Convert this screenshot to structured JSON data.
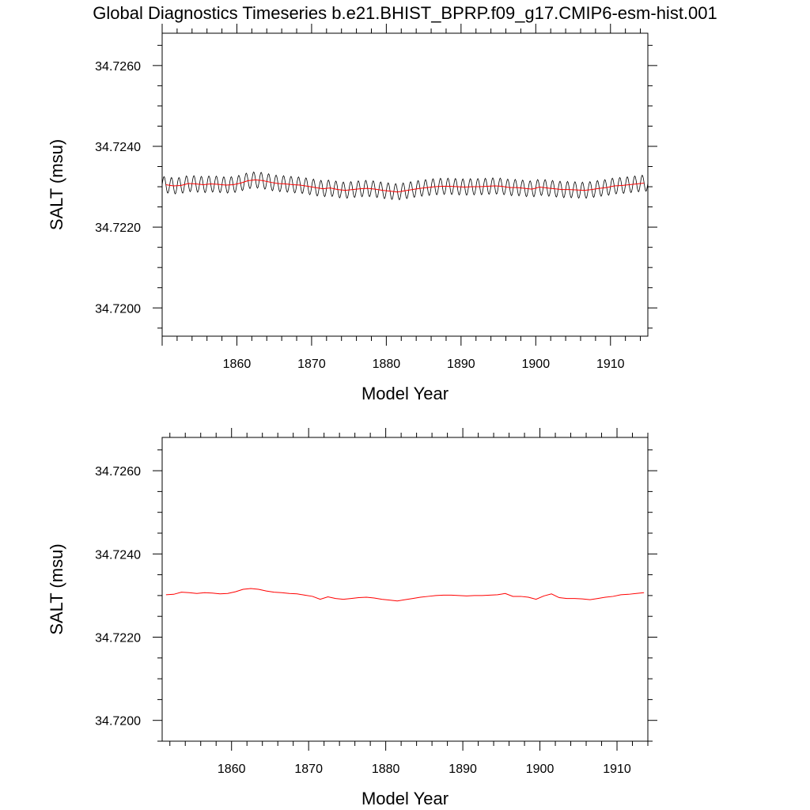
{
  "chart_data": [
    {
      "type": "line",
      "title": "Global Diagnostics Timeseries b.e21.BHIST_BPRP.f09_g17.CMIP6-esm-hist.001",
      "xlabel": "Model Year",
      "ylabel": "SALT (msu)",
      "xlim": [
        1850,
        1915
      ],
      "ylim": [
        34.7193,
        34.7268
      ],
      "x_ticks": [
        "1860",
        "1870",
        "1880",
        "1890",
        "1900",
        "1910"
      ],
      "y_ticks": [
        "34.7200",
        "34.7220",
        "34.7240",
        "34.7260"
      ],
      "grid": false,
      "series": [
        {
          "color": "#000000",
          "seasonal_amplitude": 0.0002,
          "x": [
            1850.5,
            1851.5,
            1852.5,
            1853.5,
            1854.5,
            1855.5,
            1856.5,
            1857.5,
            1858.5,
            1859.5,
            1860.5,
            1861.5,
            1862.5,
            1863.5,
            1864.5,
            1865.5,
            1866.5,
            1867.5,
            1868.5,
            1869.5,
            1870.5,
            1871.5,
            1872.5,
            1873.5,
            1874.5,
            1875.5,
            1876.5,
            1877.5,
            1878.5,
            1879.5,
            1880.5,
            1881.5,
            1882.5,
            1883.5,
            1884.5,
            1885.5,
            1886.5,
            1887.5,
            1888.5,
            1889.5,
            1890.5,
            1891.5,
            1892.5,
            1893.5,
            1894.5,
            1895.5,
            1896.5,
            1897.5,
            1898.5,
            1899.5,
            1900.5,
            1901.5,
            1902.5,
            1903.5,
            1904.5,
            1905.5,
            1906.5,
            1907.5,
            1908.5,
            1909.5,
            1910.5,
            1911.5,
            1912.5,
            1913.5,
            1914.5
          ],
          "y": [
            34.72305,
            34.72302,
            34.72303,
            34.72308,
            34.72307,
            34.72305,
            34.72307,
            34.72306,
            34.72304,
            34.72305,
            34.72309,
            34.72315,
            34.72317,
            34.72315,
            34.72311,
            34.72308,
            34.72307,
            34.72305,
            34.72304,
            34.72301,
            34.72298,
            34.72295,
            34.72297,
            34.72293,
            34.72291,
            34.72293,
            34.72295,
            34.72296,
            34.72294,
            34.72291,
            34.72289,
            34.72287,
            34.7229,
            34.72293,
            34.72296,
            34.72298,
            34.723,
            34.72301,
            34.72301,
            34.723,
            34.72299,
            34.723,
            34.723,
            34.72301,
            34.72302,
            34.72301,
            34.72298,
            34.72298,
            34.72296,
            34.72294,
            34.72299,
            34.72297,
            34.72295,
            34.72293,
            34.72293,
            34.72292,
            34.72291,
            34.72293,
            34.72296,
            34.72298,
            34.72302,
            34.72303,
            34.72305,
            34.72307,
            34.72309
          ]
        },
        {
          "color": "#ff0000",
          "x": [
            1850.5,
            1851.5,
            1852.5,
            1853.5,
            1854.5,
            1855.5,
            1856.5,
            1857.5,
            1858.5,
            1859.5,
            1860.5,
            1861.5,
            1862.5,
            1863.5,
            1864.5,
            1865.5,
            1866.5,
            1867.5,
            1868.5,
            1869.5,
            1870.5,
            1871.5,
            1872.5,
            1873.5,
            1874.5,
            1875.5,
            1876.5,
            1877.5,
            1878.5,
            1879.5,
            1880.5,
            1881.5,
            1882.5,
            1883.5,
            1884.5,
            1885.5,
            1886.5,
            1887.5,
            1888.5,
            1889.5,
            1890.5,
            1891.5,
            1892.5,
            1893.5,
            1894.5,
            1895.5,
            1896.5,
            1897.5,
            1898.5,
            1899.5,
            1900.5,
            1901.5,
            1902.5,
            1903.5,
            1904.5,
            1905.5,
            1906.5,
            1907.5,
            1908.5,
            1909.5,
            1910.5,
            1911.5,
            1912.5,
            1913.5,
            1914.5
          ],
          "y": [
            34.72305,
            34.72302,
            34.72303,
            34.72308,
            34.72307,
            34.72305,
            34.72307,
            34.72306,
            34.72304,
            34.72305,
            34.72309,
            34.72315,
            34.72317,
            34.72315,
            34.72311,
            34.72308,
            34.72307,
            34.72305,
            34.72304,
            34.72301,
            34.72298,
            34.72295,
            34.72297,
            34.72293,
            34.72291,
            34.72293,
            34.72295,
            34.72296,
            34.72294,
            34.72291,
            34.72289,
            34.72287,
            34.7229,
            34.72293,
            34.72296,
            34.72298,
            34.723,
            34.72301,
            34.72301,
            34.723,
            34.72299,
            34.723,
            34.723,
            34.72301,
            34.72302,
            34.72301,
            34.72298,
            34.72298,
            34.72296,
            34.72294,
            34.72299,
            34.72297,
            34.72295,
            34.72293,
            34.72293,
            34.72292,
            34.72291,
            34.72293,
            34.72296,
            34.72298,
            34.72302,
            34.72303,
            34.72305,
            34.72307,
            34.72309
          ]
        }
      ]
    },
    {
      "type": "line",
      "xlabel": "Model Year",
      "ylabel": "SALT (msu)",
      "xlim": [
        1851,
        1914
      ],
      "ylim": [
        34.7195,
        34.7268
      ],
      "x_ticks": [
        "1860",
        "1870",
        "1880",
        "1890",
        "1900",
        "1910"
      ],
      "y_ticks": [
        "34.7200",
        "34.7220",
        "34.7240",
        "34.7260"
      ],
      "grid": false,
      "series": [
        {
          "color": "#ff0000",
          "x": [
            1851.5,
            1852.5,
            1853.5,
            1854.5,
            1855.5,
            1856.5,
            1857.5,
            1858.5,
            1859.5,
            1860.5,
            1861.5,
            1862.5,
            1863.5,
            1864.5,
            1865.5,
            1866.5,
            1867.5,
            1868.5,
            1869.5,
            1870.5,
            1871.5,
            1872.5,
            1873.5,
            1874.5,
            1875.5,
            1876.5,
            1877.5,
            1878.5,
            1879.5,
            1880.5,
            1881.5,
            1882.5,
            1883.5,
            1884.5,
            1885.5,
            1886.5,
            1887.5,
            1888.5,
            1889.5,
            1890.5,
            1891.5,
            1892.5,
            1893.5,
            1894.5,
            1895.5,
            1896.5,
            1897.5,
            1898.5,
            1899.5,
            1900.5,
            1901.5,
            1902.5,
            1903.5,
            1904.5,
            1905.5,
            1906.5,
            1907.5,
            1908.5,
            1909.5,
            1910.5,
            1911.5,
            1912.5,
            1913.5
          ],
          "y": [
            34.72302,
            34.72303,
            34.72308,
            34.72307,
            34.72305,
            34.72307,
            34.72306,
            34.72304,
            34.72305,
            34.72309,
            34.72315,
            34.72317,
            34.72315,
            34.72311,
            34.72308,
            34.72307,
            34.72305,
            34.72304,
            34.72301,
            34.72298,
            34.72291,
            34.72297,
            34.72293,
            34.72291,
            34.72293,
            34.72295,
            34.72296,
            34.72294,
            34.72291,
            34.72289,
            34.72287,
            34.7229,
            34.72293,
            34.72296,
            34.72298,
            34.723,
            34.72301,
            34.72301,
            34.723,
            34.72299,
            34.723,
            34.723,
            34.72301,
            34.72302,
            34.72305,
            34.72298,
            34.72298,
            34.72296,
            34.72291,
            34.72299,
            34.72304,
            34.72295,
            34.72293,
            34.72293,
            34.72292,
            34.7229,
            34.72293,
            34.72296,
            34.72298,
            34.72302,
            34.72303,
            34.72305,
            34.72307
          ]
        }
      ]
    }
  ]
}
